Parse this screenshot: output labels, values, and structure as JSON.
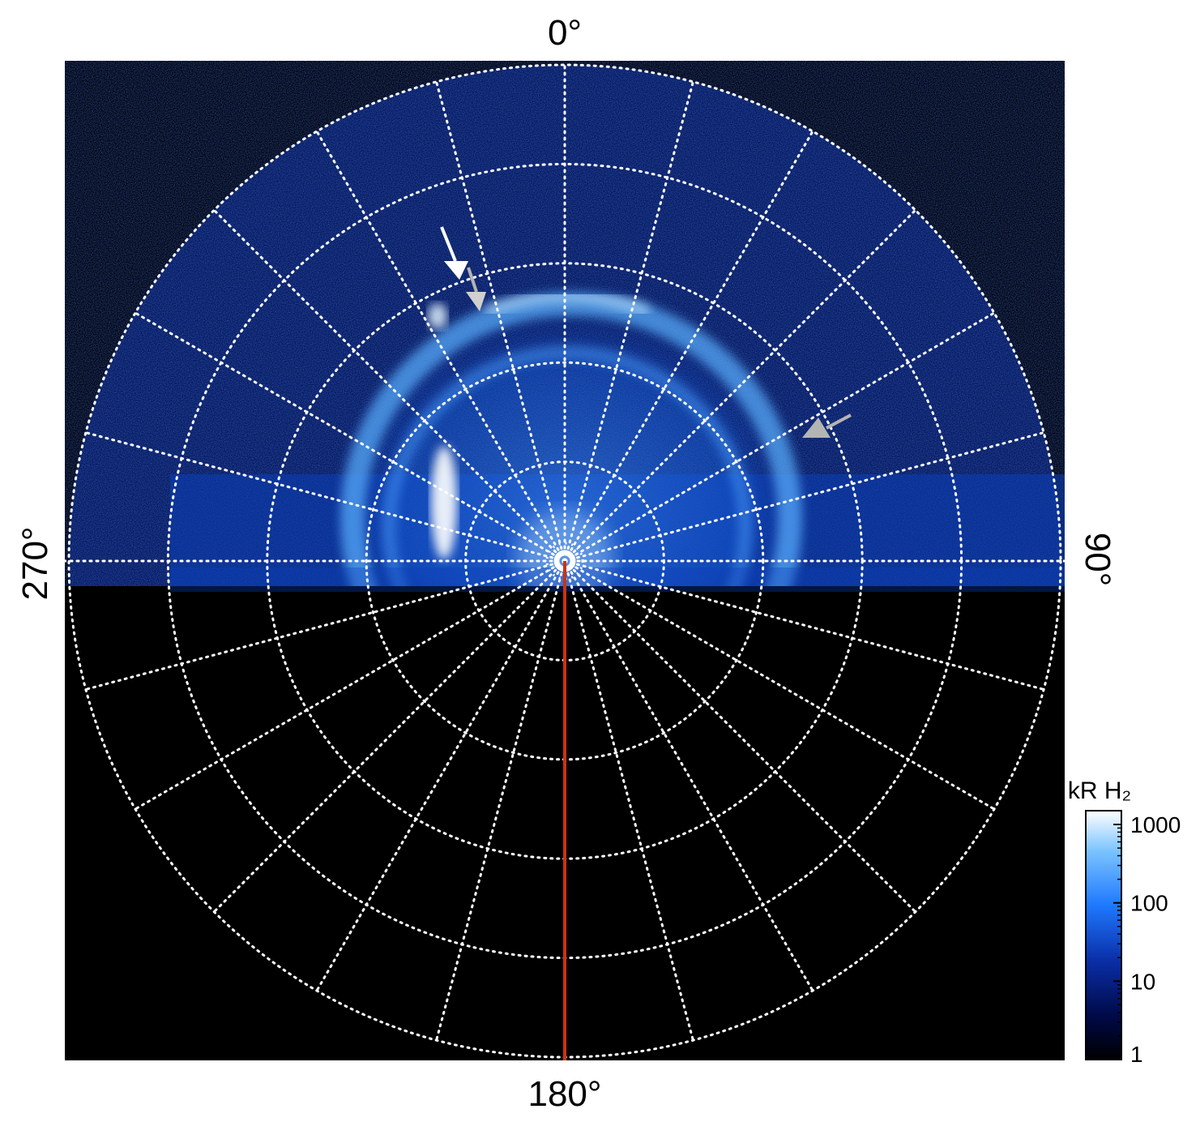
{
  "polar_labels": {
    "top": "0°",
    "right": "90°",
    "bottom": "180°",
    "left": "270°"
  },
  "colorbar": {
    "title": "kR H₂",
    "ticks": [
      "1000",
      "100",
      "10",
      "1"
    ],
    "tick_values": [
      1000,
      100,
      10,
      1
    ],
    "scale": "log",
    "range": [
      1,
      1500
    ],
    "colors": [
      "#000000",
      "#000a4a",
      "#0a2fa8",
      "#1f78ff",
      "#7cc4ff",
      "#ffffff"
    ]
  },
  "grid": {
    "rings": 5,
    "spokes_deg": 15,
    "style": "dotted",
    "color": "#ffffff"
  },
  "reference_line": {
    "angle_deg": 180,
    "color": "#cc3311"
  },
  "colors": {
    "background": "#000000",
    "emission": "#1f78ff",
    "arrow_primary": "#ffffff",
    "arrow_secondary": "#b4b4b4"
  }
}
